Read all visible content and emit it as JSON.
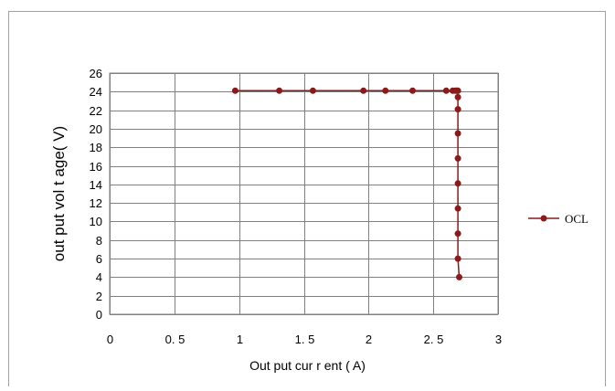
{
  "chart_data": {
    "type": "line",
    "title": "",
    "xlabel": "Out put  cur r ent ( A)",
    "ylabel": "out put  vol t age( V)",
    "xlim": [
      0,
      3
    ],
    "ylim": [
      0,
      26
    ],
    "x_ticks": [
      "0",
      "0. 5",
      "1",
      "1. 5",
      "2",
      "2. 5",
      "3"
    ],
    "y_ticks": [
      "0",
      "2",
      "4",
      "6",
      "8",
      "10",
      "12",
      "14",
      "16",
      "18",
      "20",
      "22",
      "24",
      "26"
    ],
    "grid": true,
    "legend_position": "right",
    "series": [
      {
        "name": "OCL",
        "color": "#8b1a1a",
        "marker": "circle",
        "points": [
          [
            0.97,
            24.1
          ],
          [
            1.31,
            24.1
          ],
          [
            1.57,
            24.1
          ],
          [
            1.96,
            24.1
          ],
          [
            2.13,
            24.1
          ],
          [
            2.34,
            24.1
          ],
          [
            2.6,
            24.1
          ],
          [
            2.65,
            24.1
          ],
          [
            2.67,
            24.1
          ],
          [
            2.68,
            24.1
          ],
          [
            2.69,
            24.1
          ],
          [
            2.69,
            23.4
          ],
          [
            2.69,
            22.1
          ],
          [
            2.69,
            19.5
          ],
          [
            2.69,
            16.8
          ],
          [
            2.69,
            14.1
          ],
          [
            2.69,
            11.4
          ],
          [
            2.69,
            8.7
          ],
          [
            2.69,
            6.0
          ],
          [
            2.7,
            4.0
          ]
        ]
      }
    ]
  }
}
